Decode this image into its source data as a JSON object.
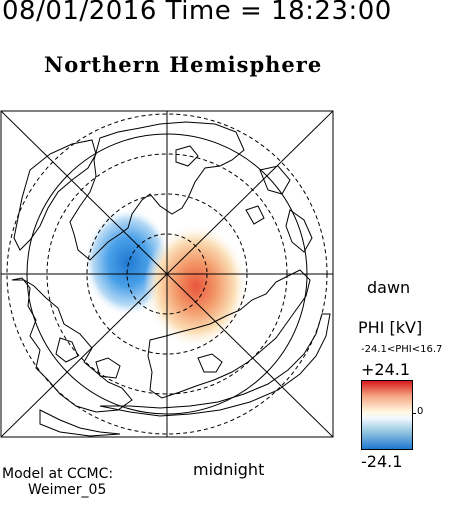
{
  "header": {
    "title": "08/01/2016 Time = 18:23:00"
  },
  "map": {
    "title": "Northern Hemisphere",
    "dawn_label": "dawn",
    "midnight_label": "midnight"
  },
  "legend": {
    "title": "PHI [kV]",
    "range_text": "-24.1<PHI<16.7",
    "max_label": "+24.1",
    "min_label": "-24.1",
    "zero_label": "0",
    "colors": {
      "positive": "#d7191c",
      "neutral": "#ffffff",
      "negative": "#1f78d1"
    }
  },
  "credit": {
    "line1": "Model at CCMC:",
    "line2": "Weimer_05"
  }
}
